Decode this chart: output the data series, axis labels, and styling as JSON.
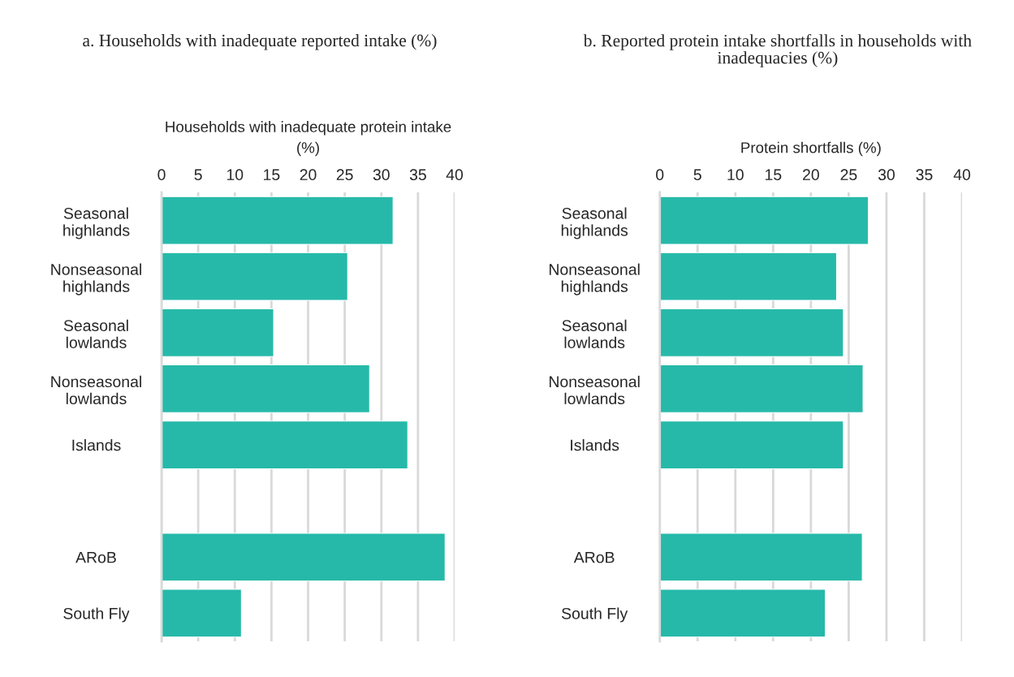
{
  "chart_data": [
    {
      "type": "bar",
      "orientation": "horizontal",
      "title": "a. Households with inadequate reported intake (%)",
      "xlabel": "Households with inadequate protein intake\n(%)",
      "categories": [
        "Seasonal\nhighlands",
        "Nonseasonal\nhighlands",
        "Seasonal\nlowlands",
        "Nonseasonal\nlowlands",
        "Islands",
        null,
        "ARoB",
        "South Fly"
      ],
      "values": [
        31.6,
        25.4,
        15.3,
        28.4,
        33.6,
        null,
        38.7,
        10.9
      ],
      "color": "#26b9a9",
      "xlim": [
        0,
        40
      ],
      "xticks": [
        0,
        5,
        10,
        15,
        20,
        25,
        30,
        35,
        40
      ],
      "grid": "x"
    },
    {
      "type": "bar",
      "orientation": "horizontal",
      "title": "b. Reported protein intake shortfalls in households with\ninadequacies (%)",
      "xlabel": "Protein shortfalls (%)",
      "categories": [
        "Seasonal\nhighlands",
        "Nonseasonal\nhighlands",
        "Seasonal\nlowlands",
        "Nonseasonal\nlowlands",
        "Islands",
        null,
        "ARoB",
        "South Fly"
      ],
      "values": [
        27.6,
        23.4,
        24.3,
        26.9,
        24.3,
        null,
        26.8,
        21.9
      ],
      "color": "#26b9a9",
      "xlim": [
        0,
        40
      ],
      "xticks": [
        0,
        5,
        10,
        15,
        20,
        25,
        30,
        35,
        40
      ],
      "grid": "x"
    }
  ]
}
